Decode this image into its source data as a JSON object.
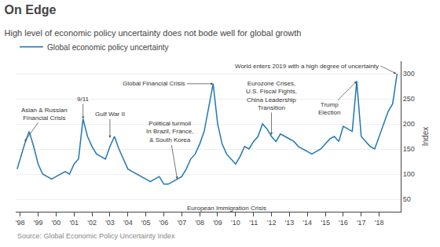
{
  "chart_data": {
    "type": "line",
    "title": "On Edge",
    "subtitle": "High level of economic policy uncertainty does not bode well for global growth",
    "ylabel": "Index",
    "source": "Source: Global Economic Policy Uncertainty Index",
    "x": [
      1997.83,
      1998.0,
      1998.25,
      1998.5,
      1998.75,
      1999.0,
      1999.25,
      1999.5,
      1999.75,
      2000.0,
      2000.25,
      2000.5,
      2000.75,
      2001.0,
      2001.25,
      2001.5,
      2001.75,
      2002.0,
      2002.25,
      2002.5,
      2002.75,
      2003.0,
      2003.25,
      2003.5,
      2003.75,
      2004.0,
      2004.25,
      2004.5,
      2004.75,
      2005.0,
      2005.25,
      2005.5,
      2005.75,
      2006.0,
      2006.25,
      2006.5,
      2006.75,
      2007.0,
      2007.25,
      2007.5,
      2007.75,
      2008.0,
      2008.25,
      2008.5,
      2008.75,
      2009.0,
      2009.25,
      2009.5,
      2009.75,
      2010.0,
      2010.25,
      2010.5,
      2010.75,
      2011.0,
      2011.25,
      2011.5,
      2011.75,
      2012.0,
      2012.25,
      2012.5,
      2012.75,
      2013.0,
      2013.25,
      2013.5,
      2013.75,
      2014.0,
      2014.25,
      2014.5,
      2014.75,
      2015.0,
      2015.25,
      2015.5,
      2015.75,
      2016.0,
      2016.25,
      2016.5,
      2016.75,
      2017.0,
      2017.25,
      2017.5,
      2017.75,
      2018.0,
      2018.25,
      2018.5,
      2018.75,
      2019.0
    ],
    "series": [
      {
        "name": "Global economic policy uncertainty",
        "values": [
          110,
          130,
          160,
          185,
          155,
          120,
          100,
          95,
          90,
          95,
          100,
          105,
          100,
          120,
          130,
          210,
          175,
          155,
          140,
          135,
          130,
          155,
          175,
          150,
          130,
          110,
          105,
          100,
          95,
          90,
          85,
          90,
          95,
          80,
          80,
          85,
          90,
          95,
          110,
          130,
          140,
          160,
          185,
          230,
          280,
          200,
          160,
          140,
          130,
          120,
          135,
          155,
          150,
          165,
          175,
          200,
          190,
          175,
          165,
          180,
          175,
          170,
          165,
          155,
          150,
          145,
          140,
          145,
          150,
          160,
          170,
          175,
          165,
          195,
          190,
          185,
          285,
          175,
          165,
          155,
          150,
          175,
          200,
          225,
          240,
          300
        ]
      }
    ],
    "xlim": [
      1997.75,
      2019.2
    ],
    "xticks": [
      {
        "value": 1998,
        "label": "'98"
      },
      {
        "value": 1999,
        "label": "'99"
      },
      {
        "value": 2000,
        "label": "'00"
      },
      {
        "value": 2001,
        "label": "'01"
      },
      {
        "value": 2002,
        "label": "'02"
      },
      {
        "value": 2003,
        "label": "'03"
      },
      {
        "value": 2004,
        "label": "'04"
      },
      {
        "value": 2005,
        "label": "'05"
      },
      {
        "value": 2006,
        "label": "'06"
      },
      {
        "value": 2007,
        "label": "'07"
      },
      {
        "value": 2008,
        "label": "'08"
      },
      {
        "value": 2009,
        "label": "'09"
      },
      {
        "value": 2010,
        "label": "'10"
      },
      {
        "value": 2011,
        "label": "'11"
      },
      {
        "value": 2012,
        "label": "'12"
      },
      {
        "value": 2013,
        "label": "'13"
      },
      {
        "value": 2014,
        "label": "'14"
      },
      {
        "value": 2015,
        "label": "'15"
      },
      {
        "value": 2016,
        "label": "'16"
      },
      {
        "value": 2017,
        "label": "'17"
      },
      {
        "value": 2018,
        "label": "'18"
      }
    ],
    "ylim": [
      25,
      325
    ],
    "yticks": [
      50,
      100,
      150,
      200,
      250,
      300
    ],
    "grid": true,
    "legend": "top left",
    "annotations": [
      {
        "text": "Asian & Russian\nFinancial Crisis",
        "x": 1998.25,
        "y": 165
      },
      {
        "text": "9/11",
        "x": 2001.5,
        "y": 210
      },
      {
        "text": "Gulf War II",
        "x": 2003.0,
        "y": 172
      },
      {
        "text": "Political turmoil\nIn Brazil, France,\n& South Korea",
        "x": 2006.75,
        "y": 90
      },
      {
        "text": "Global Financial Crisis",
        "x": 2008.75,
        "y": 280
      },
      {
        "text": "European Immigration Crisis",
        "x": 2009.5,
        "y": 42
      },
      {
        "text": "Eurozone Crises,\nU.S. Fiscal Fights,\nChina Leadership\nTransition",
        "x": 2012.0,
        "y": 178
      },
      {
        "text": "Trump\nElection",
        "x": 2016.75,
        "y": 285
      },
      {
        "text": "World enters 2019 with a high degree of uncertainty",
        "x": 2018.95,
        "y": 300
      }
    ]
  }
}
